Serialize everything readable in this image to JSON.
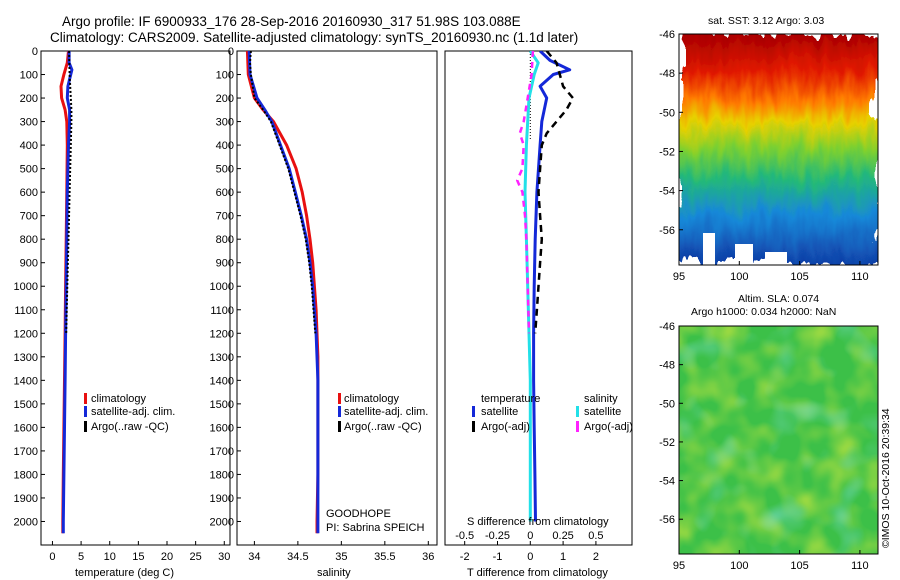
{
  "header": {
    "line1": "Argo profile: IF 6900933_176 28-Sep-2016 20160930_317 51.98S 103.088E",
    "line2": "Climatology: CARS2009. Satellite-adjusted climatology: synTS_20160930.nc (1.1d later)"
  },
  "colors": {
    "climatology": "#e81010",
    "satellite": "#1428d8",
    "argo": "#000000",
    "sal_satellite": "#22e0e8",
    "sal_argo": "#ff22ff"
  },
  "depth_ticks": [
    "0",
    "100",
    "200",
    "300",
    "400",
    "500",
    "600",
    "700",
    "800",
    "900",
    "1000",
    "1100",
    "1200",
    "1300",
    "1400",
    "1500",
    "1600",
    "1700",
    "1800",
    "1900",
    "2000"
  ],
  "chart_data": [
    {
      "type": "line",
      "xlabel": "temperature (deg C)",
      "ylabel": "",
      "xlim": [
        -2,
        31
      ],
      "ylim": [
        2100,
        0
      ],
      "xticks": [
        "0",
        "5",
        "10",
        "15",
        "20",
        "25",
        "30"
      ],
      "legend": [
        "climatology",
        "satellite-adj. clim.",
        "Argo(..raw -QC)"
      ],
      "series": [
        {
          "name": "climatology",
          "depth": [
            0,
            50,
            100,
            150,
            200,
            250,
            300,
            400,
            600,
            800,
            1000,
            1200,
            1400,
            1600,
            1800,
            2000,
            2050
          ],
          "values": [
            2.8,
            2.6,
            2.0,
            1.5,
            1.6,
            2.2,
            2.5,
            2.6,
            2.5,
            2.4,
            2.3,
            2.2,
            2.1,
            2.0,
            1.9,
            1.8,
            1.8
          ]
        },
        {
          "name": "satellite-adj. clim.",
          "depth": [
            0,
            50,
            80,
            120,
            150,
            200,
            250,
            300,
            400,
            600,
            800,
            1000,
            1200,
            1400,
            1600,
            1800,
            2000,
            2050
          ],
          "values": [
            2.9,
            2.9,
            3.4,
            3.0,
            2.7,
            2.6,
            3.0,
            3.0,
            2.8,
            2.6,
            2.5,
            2.4,
            2.3,
            2.2,
            2.1,
            2.0,
            1.9,
            1.9
          ]
        },
        {
          "name": "Argo(..raw -QC)",
          "depth": [
            0,
            100,
            200,
            250,
            300,
            400,
            600,
            800,
            1000,
            1200
          ],
          "values": [
            2.9,
            3.0,
            3.2,
            3.3,
            3.3,
            3.2,
            3.0,
            2.8,
            2.6,
            2.4
          ]
        }
      ]
    },
    {
      "type": "line",
      "xlabel": "salinity",
      "xlim": [
        33.8,
        36.1
      ],
      "ylim": [
        2100,
        0
      ],
      "xticks": [
        "34",
        "34.5",
        "35",
        "35.5",
        "36"
      ],
      "legend": [
        "climatology",
        "satellite-adj. clim.",
        "Argo(..raw -QC)"
      ],
      "annotation": [
        "GOODHOPE",
        "PI: Sabrina SPEICH"
      ],
      "series": [
        {
          "name": "climatology",
          "depth": [
            0,
            100,
            200,
            250,
            300,
            400,
            500,
            600,
            700,
            800,
            900,
            1000,
            1100,
            1200,
            1300,
            1400,
            1600,
            1800,
            2000,
            2050
          ],
          "values": [
            33.92,
            33.93,
            34.0,
            34.1,
            34.22,
            34.37,
            34.48,
            34.55,
            34.6,
            34.64,
            34.67,
            34.69,
            34.71,
            34.72,
            34.73,
            34.73,
            34.73,
            34.73,
            34.72,
            34.72
          ]
        },
        {
          "name": "satellite-adj. clim.",
          "depth": [
            0,
            100,
            200,
            250,
            300,
            400,
            500,
            600,
            700,
            800,
            900,
            1000,
            1100,
            1200,
            1300,
            1400,
            1600,
            1800,
            2000,
            2050
          ],
          "values": [
            33.94,
            33.95,
            34.03,
            34.12,
            34.2,
            34.3,
            34.4,
            34.47,
            34.54,
            34.6,
            34.64,
            34.67,
            34.69,
            34.71,
            34.72,
            34.73,
            34.73,
            34.73,
            34.73,
            34.73
          ]
        },
        {
          "name": "Argo(..raw -QC)",
          "depth": [
            0,
            50,
            100,
            200,
            250,
            300,
            400,
            500,
            600,
            700,
            800,
            900,
            1000,
            1100,
            1200
          ],
          "values": [
            33.96,
            33.95,
            33.96,
            34.0,
            34.1,
            34.19,
            34.29,
            34.39,
            34.46,
            34.53,
            34.59,
            34.63,
            34.66,
            34.68,
            34.7
          ]
        }
      ]
    },
    {
      "type": "line",
      "xlabel": "T difference from climatology",
      "x2label": "S difference from climatology",
      "xlim": [
        -2.6,
        3.1
      ],
      "ylim": [
        2100,
        0
      ],
      "xticks": [
        "-2",
        "-1",
        "0",
        "1",
        "2"
      ],
      "x2ticks": [
        "-0.5",
        "-0.25",
        "0",
        "0.25",
        "0.5"
      ],
      "legend_titles": [
        "temperature",
        "salinity"
      ],
      "legend": [
        "satellite",
        "Argo(-adj)",
        "satellite",
        "Argo(-adj)"
      ],
      "series": [
        {
          "name": "satellite",
          "depth": [
            0,
            40,
            80,
            100,
            150,
            200,
            300,
            400,
            600,
            800,
            1000,
            1200,
            1400,
            1600,
            1800,
            2000
          ],
          "values": [
            0.3,
            0.6,
            1.2,
            0.7,
            0.3,
            0.5,
            0.35,
            0.3,
            0.2,
            0.15,
            0.12,
            0.1,
            0.1,
            0.12,
            0.14,
            0.16
          ]
        },
        {
          "name": "Argo(-adj)",
          "depth": [
            0,
            50,
            100,
            150,
            200,
            250,
            300,
            350,
            400,
            500,
            600,
            700,
            800,
            900,
            1000,
            1100,
            1200
          ],
          "values": [
            0.5,
            0.8,
            0.9,
            1.0,
            1.3,
            1.1,
            0.8,
            0.5,
            0.35,
            0.3,
            0.25,
            0.3,
            0.35,
            0.3,
            0.25,
            0.2,
            0.15
          ]
        },
        {
          "name": "satellite",
          "depth": [
            0,
            50,
            100,
            200,
            300,
            400,
            600,
            800,
            1000,
            1200,
            1400,
            1600,
            1800,
            2000
          ],
          "values": [
            0.0,
            0.06,
            0.03,
            -0.01,
            -0.02,
            -0.03,
            -0.04,
            -0.03,
            -0.02,
            -0.01,
            0.0,
            0.0,
            0.0,
            0.0
          ]
        },
        {
          "name": "Argo(-adj)",
          "depth": [
            0,
            100,
            200,
            300,
            350,
            400,
            500,
            550,
            600,
            700,
            800,
            1000,
            1200
          ],
          "values": [
            0.02,
            0.01,
            -0.02,
            -0.05,
            -0.08,
            -0.05,
            -0.06,
            -0.1,
            -0.06,
            -0.04,
            -0.03,
            -0.02,
            -0.01
          ]
        }
      ]
    },
    {
      "type": "heatmap",
      "title": "sat. SST: 3.12 Argo: 3.03",
      "xticks": [
        "95",
        "100",
        "105",
        "110"
      ],
      "yticks": [
        "-46",
        "-48",
        "-50",
        "-52",
        "-54",
        "-56"
      ],
      "xlim": [
        95,
        111.5
      ],
      "ylim": [
        -57.8,
        -46
      ]
    },
    {
      "type": "heatmap",
      "title": "Altim. SLA: 0.074",
      "subtitle": "Argo h1000: 0.034 h2000: NaN",
      "xticks": [
        "95",
        "100",
        "105",
        "110"
      ],
      "yticks": [
        "-46",
        "-48",
        "-50",
        "-52",
        "-54",
        "-56"
      ],
      "xlim": [
        95,
        111.5
      ],
      "ylim": [
        -57.8,
        -46
      ]
    }
  ],
  "credit": "©IMOS 10-Oct-2016 20:39:34"
}
